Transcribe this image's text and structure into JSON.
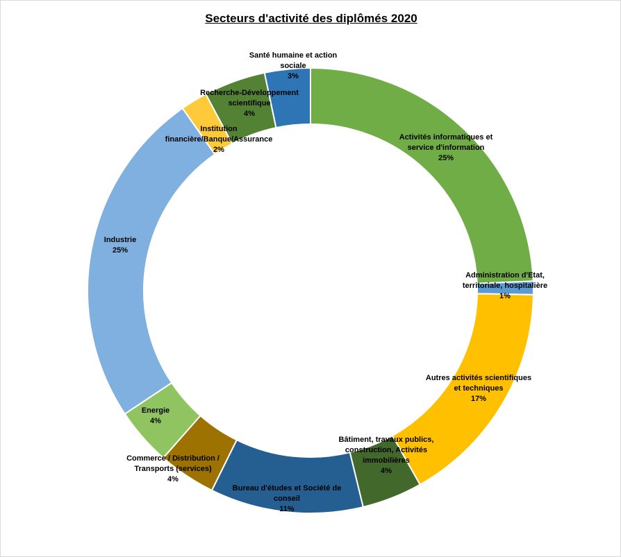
{
  "chart_data": {
    "type": "pie",
    "variant": "donut",
    "title": "Secteurs d'activité des diplômés 2020",
    "legend": "none",
    "slices": [
      {
        "label_lines": [
          "Activités informatiques et",
          "service d'information"
        ],
        "percent_label": "25%",
        "value": 25.0,
        "color": "#70AD47"
      },
      {
        "label_lines": [
          "Administration d'Etat,",
          "territoriale, hospitalière"
        ],
        "percent_label": "1%",
        "value": 1.0,
        "color": "#5B9BD5"
      },
      {
        "label_lines": [
          "Autres activités scientifiques",
          "et techniques"
        ],
        "percent_label": "17%",
        "value": 17.0,
        "color": "#FFC000"
      },
      {
        "label_lines": [
          "Bâtiment, travaux publics,",
          "construction, Activités",
          "immobilières"
        ],
        "percent_label": "4%",
        "value": 4.5,
        "color": "#43682B"
      },
      {
        "label_lines": [
          "Bureau d'études et Société de",
          "conseil"
        ],
        "percent_label": "11%",
        "value": 11.4,
        "color": "#255E91"
      },
      {
        "label_lines": [
          "Commerce / Distribution /",
          "Transports (services)"
        ],
        "percent_label": "4%",
        "value": 4.3,
        "color": "#9E7200"
      },
      {
        "label_lines": [
          "Energie"
        ],
        "percent_label": "4%",
        "value": 4.3,
        "color": "#8FC460"
      },
      {
        "label_lines": [
          "Industrie"
        ],
        "percent_label": "25%",
        "value": 25.3,
        "color": "#7FB0DF"
      },
      {
        "label_lines": [
          "Institution",
          "financière/Banque/Assurance"
        ],
        "percent_label": "2%",
        "value": 2.0,
        "color": "#FFCA3A"
      },
      {
        "label_lines": [
          "Recherche-Développement",
          "scientifique"
        ],
        "percent_label": "4%",
        "value": 4.6,
        "color": "#548235"
      },
      {
        "label_lines": [
          "Santé humaine et action",
          "sociale"
        ],
        "percent_label": "3%",
        "value": 3.4,
        "color": "#2E75B6"
      }
    ]
  }
}
